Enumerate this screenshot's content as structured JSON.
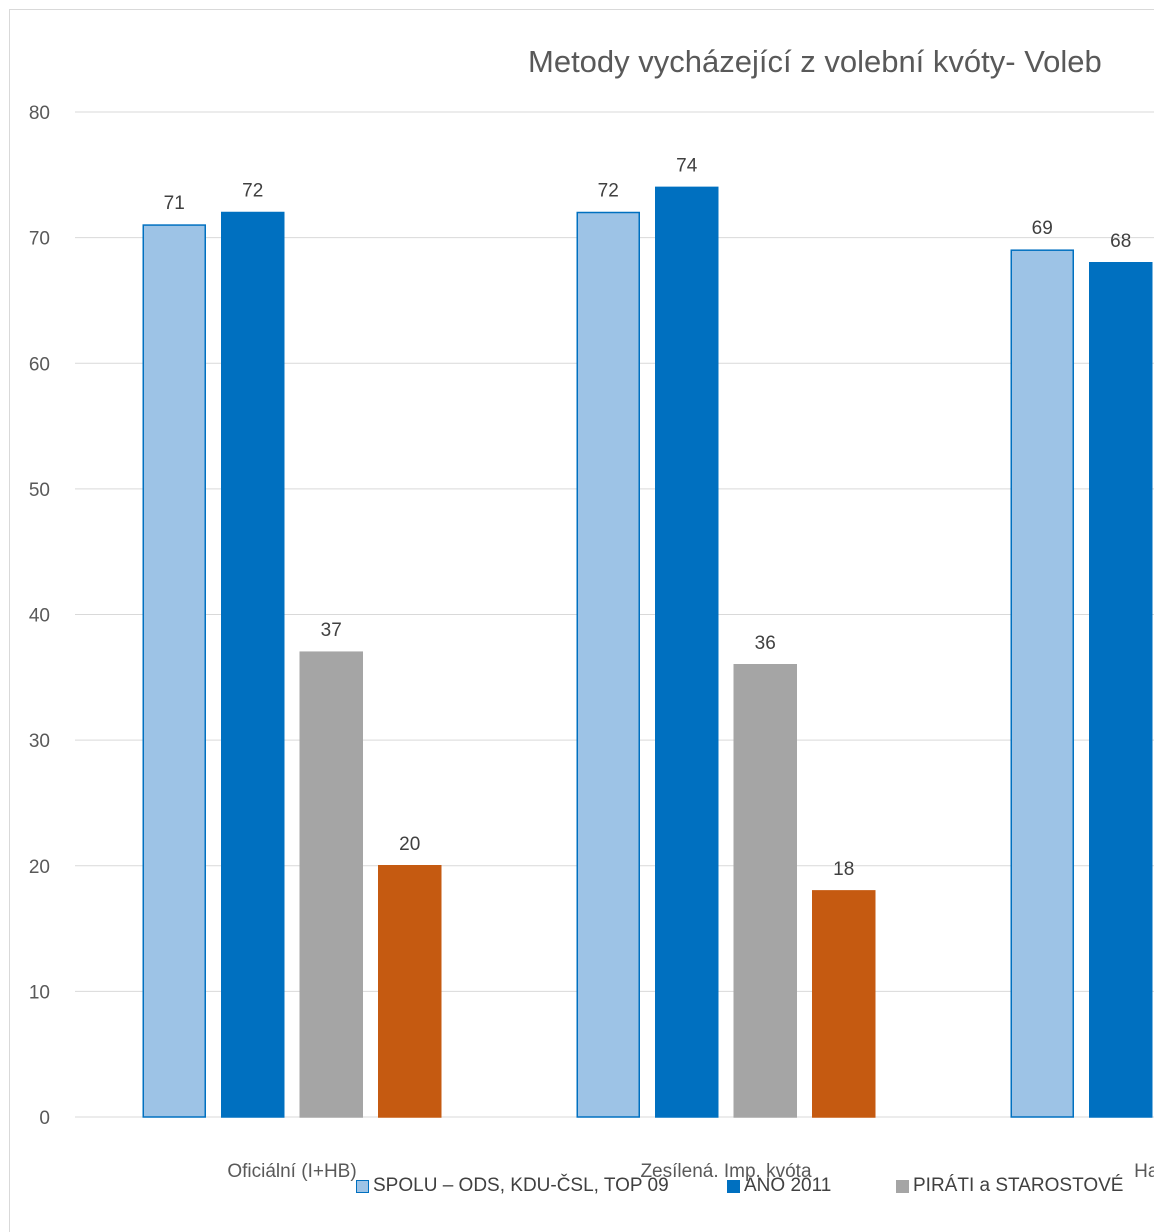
{
  "chart_data": {
    "type": "bar",
    "title": "Metody vycházející z volební kvóty- Voleb",
    "categories": [
      "Oficiální (I+HB)",
      "Zesílená. Imp. kvóta",
      "Hareo"
    ],
    "series": [
      {
        "name": "SPOLU – ODS, KDU-ČSL, TOP 09",
        "color": "#9DC3E6",
        "stroke": "#0070C0",
        "values": [
          71,
          72,
          69
        ]
      },
      {
        "name": "ANO 2011",
        "color": "#0070C0",
        "stroke": "#0070C0",
        "values": [
          72,
          74,
          68
        ]
      },
      {
        "name": "PIRÁTI a STAROSTOVÉ",
        "color": "#A5A5A5",
        "stroke": "#A5A5A5",
        "values": [
          37,
          36,
          null
        ]
      },
      {
        "name": "",
        "color": "#C55A11",
        "stroke": "#C55A11",
        "values": [
          20,
          18,
          null
        ]
      }
    ],
    "yticks": [
      0,
      10,
      20,
      30,
      40,
      50,
      60,
      70,
      80
    ],
    "ylim": [
      0,
      80
    ],
    "grid": true,
    "legend": "bottom"
  }
}
